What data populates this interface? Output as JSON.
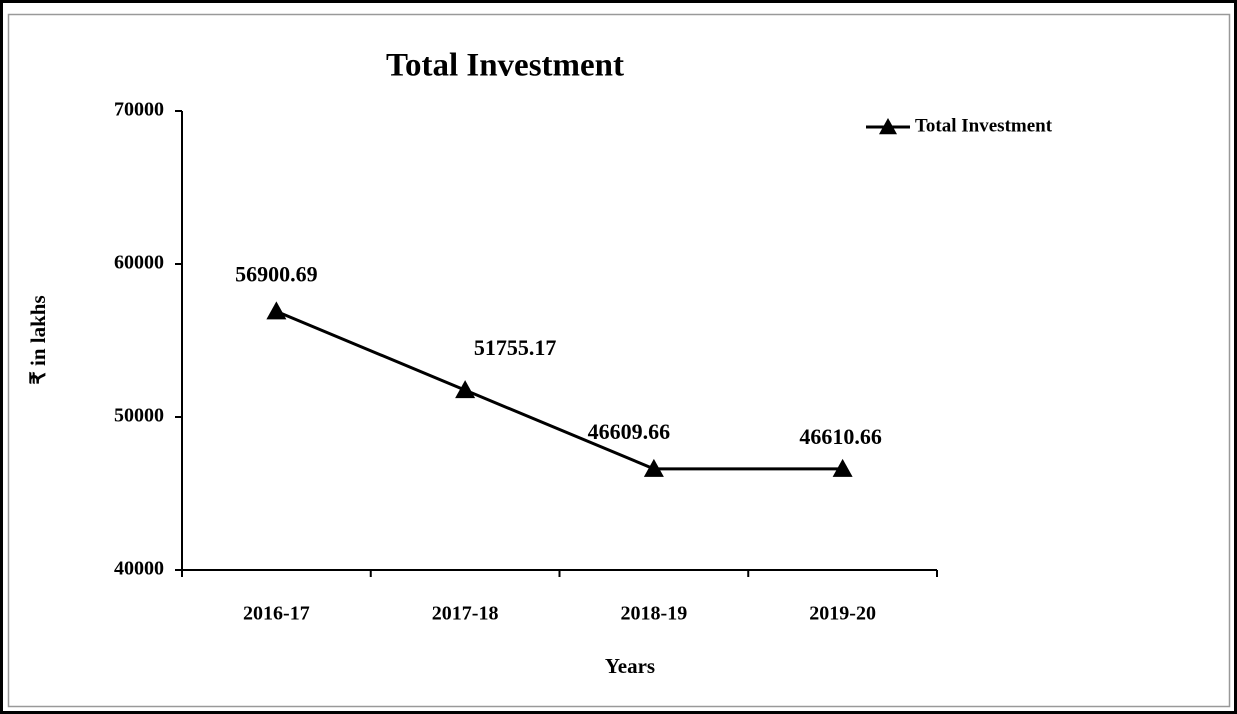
{
  "chart_data": {
    "type": "line",
    "title": "Total Investment",
    "x_label": "Years",
    "y_label": "₹ in lakhs",
    "categories": [
      "2016-17",
      "2017-18",
      "2018-19",
      "2019-20"
    ],
    "series": [
      {
        "name": "Total Investment",
        "color": "#000000",
        "values": [
          56900.69,
          51755.17,
          46609.66,
          46610.66
        ]
      }
    ],
    "ylim": [
      40000,
      70000
    ],
    "yticks": [
      40000,
      50000,
      60000,
      70000
    ],
    "grid": false,
    "legend": "upper right",
    "marker": "triangle"
  }
}
